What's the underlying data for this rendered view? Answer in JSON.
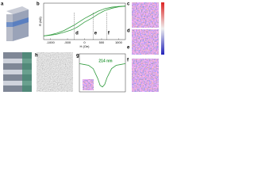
{
  "panel_labels": [
    "a",
    "b",
    "c",
    "d",
    "e",
    "f",
    "g",
    "h"
  ],
  "figure_b": {
    "type": "line",
    "x_label": "H (Oe)",
    "y_label": "R (kΩ)",
    "xlim": [
      -1200,
      1200
    ],
    "ylim": [
      0,
      10
    ],
    "xticks": [
      -1000,
      -500,
      0,
      500,
      1000
    ],
    "x": [
      -1200,
      -1000,
      -800,
      -600,
      -400,
      -300,
      -200,
      0,
      200,
      400,
      600,
      800,
      1000,
      1200
    ],
    "series": [
      {
        "color": "#2e9a3c",
        "values": [
          1,
          1.2,
          1.5,
          2,
          2.6,
          3,
          3.5,
          4.8,
          5.8,
          7,
          8,
          8.6,
          9,
          9.2
        ]
      },
      {
        "color": "#2e9a3c",
        "values": [
          1,
          1.3,
          1.8,
          2.5,
          3.5,
          4,
          4.6,
          5.8,
          6.8,
          7.8,
          8.5,
          8.9,
          9.1,
          9.2
        ]
      }
    ],
    "markers": [
      {
        "label": "d",
        "x": -300
      },
      {
        "label": "e",
        "x": 250
      },
      {
        "label": "f",
        "x": 650
      }
    ]
  },
  "figure_g": {
    "type": "line",
    "annotation": "214 nm",
    "color": "#2e9a3c",
    "xlim": [
      0,
      10
    ],
    "ylim": [
      -2,
      2
    ],
    "x": [
      0,
      1,
      2,
      3,
      4,
      4.5,
      5,
      5.5,
      6,
      7,
      8,
      9,
      10
    ],
    "values": [
      1.2,
      1.1,
      1.0,
      0.6,
      -0.6,
      -1.4,
      -1.6,
      -1.3,
      -0.5,
      0.6,
      1.0,
      1.1,
      1.2
    ]
  }
}
